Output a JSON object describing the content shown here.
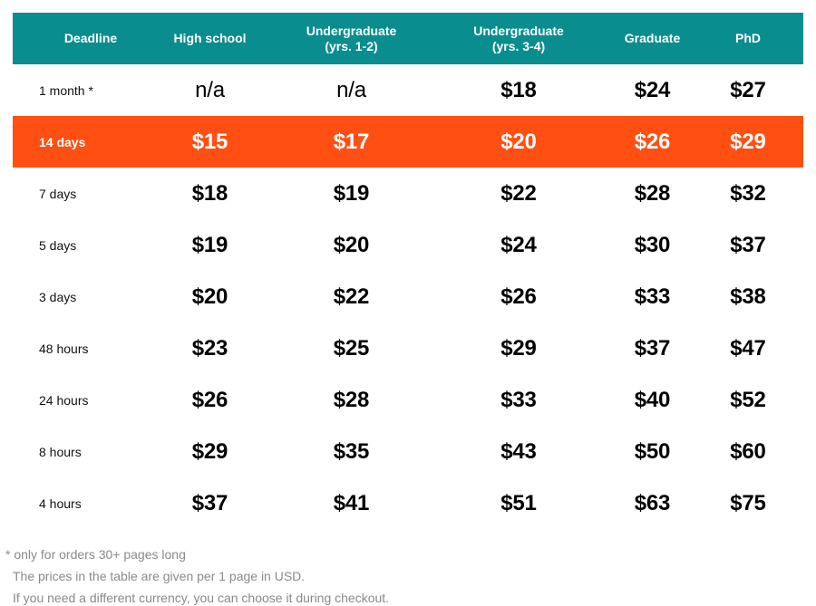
{
  "table": {
    "headers": [
      "Deadline",
      "High school",
      "Undergraduate\n(yrs. 1-2)",
      "Undergraduate\n(yrs. 3-4)",
      "Graduate",
      "PhD"
    ],
    "rows": [
      {
        "deadline": "1 month *",
        "prices": [
          "n/a",
          "n/a",
          "$18",
          "$24",
          "$27"
        ],
        "highlighted": false
      },
      {
        "deadline": "14 days",
        "prices": [
          "$15",
          "$17",
          "$20",
          "$26",
          "$29"
        ],
        "highlighted": true
      },
      {
        "deadline": "7 days",
        "prices": [
          "$18",
          "$19",
          "$22",
          "$28",
          "$32"
        ],
        "highlighted": false
      },
      {
        "deadline": "5 days",
        "prices": [
          "$19",
          "$20",
          "$24",
          "$30",
          "$37"
        ],
        "highlighted": false
      },
      {
        "deadline": "3 days",
        "prices": [
          "$20",
          "$22",
          "$26",
          "$33",
          "$38"
        ],
        "highlighted": false
      },
      {
        "deadline": "48 hours",
        "prices": [
          "$23",
          "$25",
          "$29",
          "$37",
          "$47"
        ],
        "highlighted": false
      },
      {
        "deadline": "24 hours",
        "prices": [
          "$26",
          "$28",
          "$33",
          "$40",
          "$52"
        ],
        "highlighted": false
      },
      {
        "deadline": "8 hours",
        "prices": [
          "$29",
          "$35",
          "$43",
          "$50",
          "$60"
        ],
        "highlighted": false
      },
      {
        "deadline": "4 hours",
        "prices": [
          "$37",
          "$41",
          "$51",
          "$63",
          "$75"
        ],
        "highlighted": false
      }
    ]
  },
  "notes": {
    "footnote": "* only for orders 30+ pages long",
    "prices_note": "The prices in the table are given per 1 page in USD.",
    "currency_note": "If you need a different currency, you can choose it during checkout."
  },
  "colors": {
    "header_bg": "#0a8d8e",
    "highlight_bg": "#ff4f12",
    "note_text": "#8a8a8a"
  }
}
